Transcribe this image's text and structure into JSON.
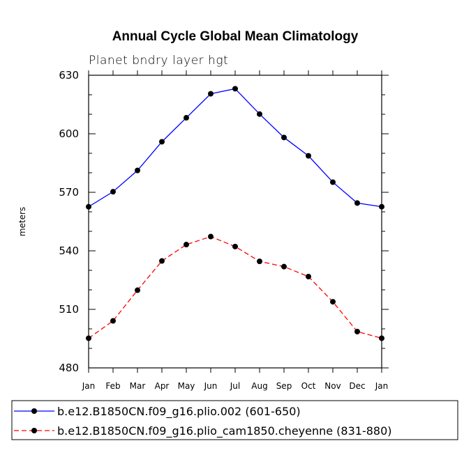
{
  "chart_data": {
    "type": "line",
    "title": "Annual Cycle Global Mean Climatology",
    "subtitle": "Planet bndry layer hgt",
    "ylabel": "meters",
    "xlabel": "",
    "categories": [
      "Jan",
      "Feb",
      "Mar",
      "Apr",
      "May",
      "Jun",
      "Jul",
      "Aug",
      "Sep",
      "Oct",
      "Nov",
      "Dec",
      "Jan"
    ],
    "ylim": [
      480,
      630
    ],
    "yticks": [
      480,
      510,
      540,
      570,
      600,
      630
    ],
    "grid": false,
    "legend_position": "bottom",
    "series": [
      {
        "name": "b.e12.B1850CN.f09_g16.plio.002 (601-650)",
        "color": "#0000ff",
        "line_style": "solid",
        "marker": "filled-circle",
        "values": [
          562.6,
          570.3,
          581.2,
          595.9,
          608.2,
          620.5,
          623.1,
          610.1,
          598.1,
          588.7,
          575.2,
          564.5,
          562.6
        ]
      },
      {
        "name": "b.e12.B1850CN.f09_g16.plio_cam1850.cheyenne (831-880)",
        "color": "#ff0000",
        "line_style": "dashed",
        "marker": "filled-circle",
        "values": [
          495.2,
          504.1,
          519.8,
          534.8,
          543.2,
          547.3,
          542.2,
          534.6,
          531.9,
          526.8,
          513.9,
          498.6,
          495.2
        ]
      }
    ]
  }
}
